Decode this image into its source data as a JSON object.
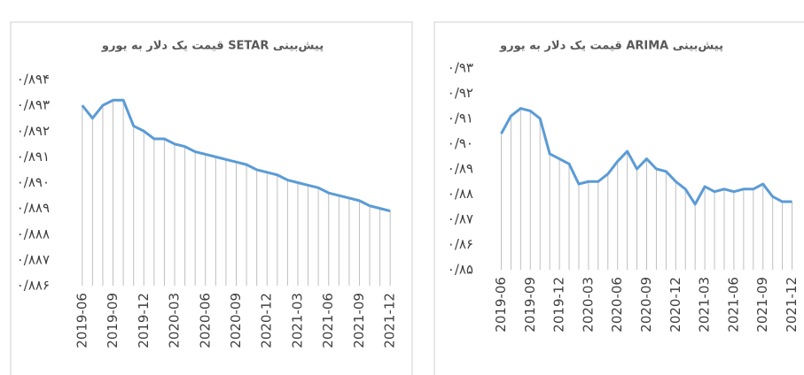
{
  "chart_data": [
    {
      "type": "line",
      "title": "پیش‌بینی SETAR قیمت یک دلار به یورو",
      "categories": [
        "2019-06",
        null,
        null,
        "2019-09",
        null,
        null,
        "2019-12",
        null,
        null,
        "2020-03",
        null,
        null,
        "2020-06",
        null,
        null,
        "2020-09",
        null,
        null,
        "2020-12",
        null,
        null,
        "2021-03",
        null,
        null,
        "2021-06",
        null,
        null,
        "2021-09",
        null,
        null,
        "2021-12"
      ],
      "series": [
        {
          "color": "#5b9bd5",
          "values": [
            0.893,
            0.8925,
            0.893,
            0.8932,
            0.8932,
            0.8922,
            0.892,
            0.8917,
            0.8917,
            0.8915,
            0.8914,
            0.8912,
            0.8911,
            0.891,
            0.8909,
            0.8908,
            0.8907,
            0.8905,
            0.8904,
            0.8903,
            0.8901,
            0.89,
            0.8899,
            0.8898,
            0.8896,
            0.8895,
            0.8894,
            0.8893,
            0.8891,
            0.889,
            0.8889
          ]
        }
      ],
      "ylim": [
        0.886,
        0.894
      ],
      "yticks": [
        {
          "value": 0.894,
          "label": "۰/۸۹۴"
        },
        {
          "value": 0.893,
          "label": "۰/۸۹۳"
        },
        {
          "value": 0.892,
          "label": "۰/۸۹۲"
        },
        {
          "value": 0.891,
          "label": "۰/۸۹۱"
        },
        {
          "value": 0.89,
          "label": "۰/۸۹۰"
        },
        {
          "value": 0.889,
          "label": "۰/۸۸۹"
        },
        {
          "value": 0.888,
          "label": "۰/۸۸۸"
        },
        {
          "value": 0.887,
          "label": "۰/۸۸۷"
        },
        {
          "value": 0.886,
          "label": "۰/۸۸۶"
        }
      ],
      "drop_lines": true
    },
    {
      "type": "line",
      "title": "پیش‌بینی ARIMA قیمت یک دلار به یورو",
      "categories": [
        "2019-06",
        null,
        null,
        "2019-09",
        null,
        null,
        "2019-12",
        null,
        null,
        "2020-03",
        null,
        null,
        "2020-06",
        null,
        null,
        "2020-09",
        null,
        null,
        "2020-12",
        null,
        null,
        "2021-03",
        null,
        null,
        "2021-06",
        null,
        null,
        "2021-09",
        null,
        null,
        "2021-12"
      ],
      "series": [
        {
          "color": "#5b9bd5",
          "values": [
            0.904,
            0.911,
            0.914,
            0.913,
            0.91,
            0.896,
            0.894,
            0.892,
            0.884,
            0.885,
            0.885,
            0.888,
            0.893,
            0.897,
            0.89,
            0.894,
            0.89,
            0.889,
            0.885,
            0.882,
            0.876,
            0.883,
            0.881,
            0.882,
            0.881,
            0.882,
            0.882,
            0.884,
            0.879,
            0.877,
            0.877
          ]
        }
      ],
      "ylim": [
        0.85,
        0.93
      ],
      "yticks": [
        {
          "value": 0.93,
          "label": "۰/۹۳"
        },
        {
          "value": 0.92,
          "label": "۰/۹۲"
        },
        {
          "value": 0.91,
          "label": "۰/۹۱"
        },
        {
          "value": 0.9,
          "label": "۰/۹۰"
        },
        {
          "value": 0.89,
          "label": "۰/۸۹"
        },
        {
          "value": 0.88,
          "label": "۰/۸۸"
        },
        {
          "value": 0.87,
          "label": "۰/۸۷"
        },
        {
          "value": 0.86,
          "label": "۰/۸۶"
        },
        {
          "value": 0.85,
          "label": "۰/۸۵"
        }
      ],
      "drop_lines": true
    }
  ]
}
